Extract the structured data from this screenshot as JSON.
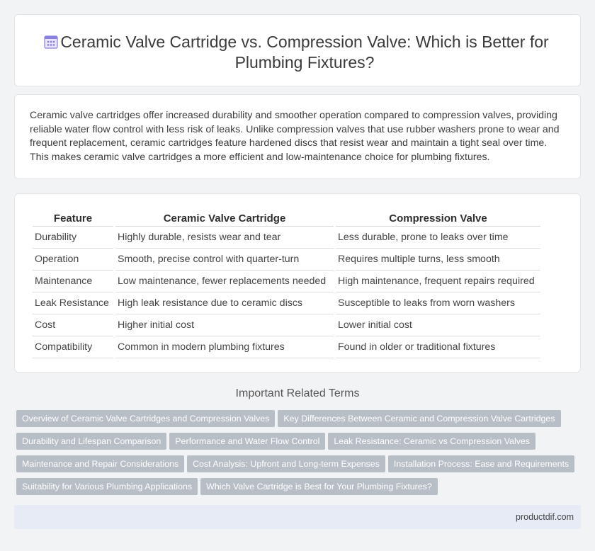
{
  "header": {
    "icon": "document-grid-icon",
    "title": "Ceramic Valve Cartridge vs. Compression Valve: Which is Better for Plumbing Fixtures?"
  },
  "summary": {
    "text": "Ceramic valve cartridges offer increased durability and smoother operation compared to compression valves, providing reliable water flow control with less risk of leaks. Unlike compression valves that use rubber washers prone to wear and frequent replacement, ceramic cartridges feature hardened discs that resist wear and maintain a tight seal over time. This makes ceramic valve cartridges a more efficient and low-maintenance choice for plumbing fixtures."
  },
  "table": {
    "headers": [
      "Feature",
      "Ceramic Valve Cartridge",
      "Compression Valve"
    ],
    "rows": [
      [
        "Durability",
        "Highly durable, resists wear and tear",
        "Less durable, prone to leaks over time"
      ],
      [
        "Operation",
        "Smooth, precise control with quarter-turn",
        "Requires multiple turns, less smooth"
      ],
      [
        "Maintenance",
        "Low maintenance, fewer replacements needed",
        "High maintenance, frequent repairs required"
      ],
      [
        "Leak Resistance",
        "High leak resistance due to ceramic discs",
        "Susceptible to leaks from worn washers"
      ],
      [
        "Cost",
        "Higher initial cost",
        "Lower initial cost"
      ],
      [
        "Compatibility",
        "Common in modern plumbing fixtures",
        "Found in older or traditional fixtures"
      ]
    ]
  },
  "related": {
    "title": "Important Related Terms",
    "tags": [
      [
        "Overview of Ceramic Valve Cartridges and Compression Valves",
        "Key Differences Between Ceramic and Compression Valve Cartridges"
      ],
      [
        "Durability and Lifespan Comparison",
        "Performance and Water Flow Control",
        "Leak Resistance: Ceramic vs Compression Valves"
      ],
      [
        "Maintenance and Repair Considerations",
        "Cost Analysis: Upfront and Long-term Expenses",
        "Installation Process: Ease and Requirements"
      ],
      [
        "Suitability for Various Plumbing Applications",
        "Which Valve Cartridge is Best for Your Plumbing Fixtures?"
      ]
    ]
  },
  "footer": {
    "site": "productdif.com"
  },
  "colors": {
    "tag_bg": "#b8bec6",
    "footer_bg": "#e6ebf5",
    "icon_accent": "#7b6fd6"
  }
}
